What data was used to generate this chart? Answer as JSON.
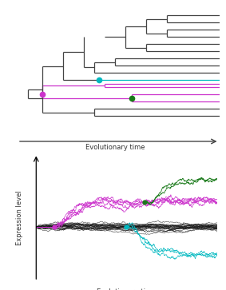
{
  "fig_width": 2.83,
  "fig_height": 3.63,
  "dpi": 100,
  "bg": "#ffffff",
  "gray": "#444444",
  "cyan": "#00b8c0",
  "magenta": "#cc33cc",
  "green": "#1a7a1a",
  "xlabel_top": "Evolutionary time",
  "xlabel_bottom": "Evolutionary time",
  "ylabel_bottom": "Expression level"
}
